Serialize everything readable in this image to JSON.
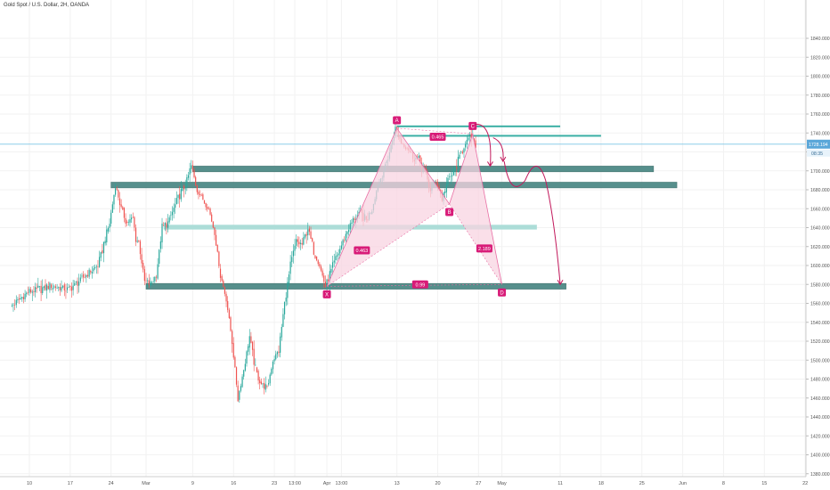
{
  "header": {
    "title": "Gold Spot / U.S. Dollar, 2H, OANDA"
  },
  "colors": {
    "up": "#26a69a",
    "down": "#ef5350",
    "zone": "#4e8a86",
    "zone_light": "#a8dbd6",
    "pattern_line": "#e86fa4",
    "pattern_fill": "#f8d4e2",
    "label_bg": "#d81b78",
    "arrow": "#c2185b",
    "price_line": "#7cc6e6",
    "price_label_bg": "#5aa7d9"
  },
  "chart_data": {
    "type": "candlestick",
    "title": "Gold Spot / U.S. Dollar, 2H, OANDA",
    "y_axis": {
      "min": 1376,
      "max": 1844,
      "ticks": [
        1380,
        1400,
        1420,
        1440,
        1460,
        1480,
        1500,
        1520,
        1540,
        1560,
        1580,
        1600,
        1620,
        1640,
        1660,
        1680,
        1700,
        1720,
        1740,
        1760,
        1780,
        1800,
        1820,
        1840
      ],
      "tick_labels": [
        "1380.000",
        "1400.000",
        "1420.000",
        "1440.000",
        "1460.000",
        "1480.000",
        "1500.000",
        "1520.000",
        "1540.000",
        "1560.000",
        "1580.000",
        "1600.000",
        "1620.000",
        "1640.000",
        "1660.000",
        "1680.000",
        "1700.000",
        "1720.000",
        "1740.000",
        "1760.000",
        "1780.000",
        "1800.000",
        "1820.000",
        "1840.000"
      ]
    },
    "x_axis": {
      "ticks": [
        {
          "label": "10",
          "day": -20
        },
        {
          "label": "17",
          "day": -13
        },
        {
          "label": "24",
          "day": -6
        },
        {
          "label": "Mar",
          "day": 0
        },
        {
          "label": "9",
          "day": 8
        },
        {
          "label": "16",
          "day": 15
        },
        {
          "label": "23",
          "day": 22
        },
        {
          "label": "13:00",
          "day": 25.5
        },
        {
          "label": "Apr",
          "day": 31
        },
        {
          "label": "13:00",
          "day": 33.5
        },
        {
          "label": "13",
          "day": 43
        },
        {
          "label": "20",
          "day": 50
        },
        {
          "label": "27",
          "day": 57
        },
        {
          "label": "May",
          "day": 61
        },
        {
          "label": "11",
          "day": 71
        },
        {
          "label": "18",
          "day": 78
        },
        {
          "label": "25",
          "day": 85
        },
        {
          "label": "Jun",
          "day": 92
        },
        {
          "label": "8",
          "day": 99
        },
        {
          "label": "15",
          "day": 106
        },
        {
          "label": "22",
          "day": 113
        }
      ]
    },
    "price_path": [
      [
        -23,
        1556
      ],
      [
        -20,
        1572
      ],
      [
        -16,
        1578
      ],
      [
        -13,
        1575
      ],
      [
        -10,
        1590
      ],
      [
        -8,
        1600
      ],
      [
        -6,
        1645
      ],
      [
        -5,
        1685
      ],
      [
        -4,
        1660
      ],
      [
        -3,
        1645
      ],
      [
        -2,
        1650
      ],
      [
        -1.5,
        1628
      ],
      [
        -1,
        1625
      ],
      [
        0,
        1583
      ],
      [
        1,
        1580
      ],
      [
        2,
        1590
      ],
      [
        3,
        1640
      ],
      [
        4,
        1645
      ],
      [
        5,
        1660
      ],
      [
        6,
        1675
      ],
      [
        7,
        1685
      ],
      [
        8,
        1705
      ],
      [
        9,
        1680
      ],
      [
        10,
        1670
      ],
      [
        11,
        1660
      ],
      [
        12,
        1635
      ],
      [
        13,
        1590
      ],
      [
        14,
        1565
      ],
      [
        15,
        1520
      ],
      [
        16,
        1460
      ],
      [
        17,
        1490
      ],
      [
        18,
        1525
      ],
      [
        19,
        1490
      ],
      [
        20,
        1475
      ],
      [
        21,
        1470
      ],
      [
        22,
        1500
      ],
      [
        23,
        1510
      ],
      [
        24,
        1560
      ],
      [
        25,
        1600
      ],
      [
        26,
        1625
      ],
      [
        27,
        1622
      ],
      [
        28,
        1640
      ],
      [
        29,
        1615
      ],
      [
        30,
        1600
      ],
      [
        31,
        1578
      ],
      [
        32,
        1595
      ],
      [
        33,
        1610
      ],
      [
        34,
        1625
      ],
      [
        35,
        1640
      ],
      [
        36,
        1650
      ],
      [
        37,
        1655
      ],
      [
        38,
        1648
      ],
      [
        39,
        1660
      ],
      [
        40,
        1685
      ],
      [
        41,
        1700
      ],
      [
        42,
        1720
      ],
      [
        43,
        1745
      ],
      [
        44,
        1730
      ],
      [
        45,
        1725
      ],
      [
        46,
        1715
      ],
      [
        47,
        1712
      ],
      [
        48,
        1700
      ],
      [
        49,
        1680
      ],
      [
        50,
        1690
      ],
      [
        51,
        1670
      ],
      [
        52,
        1690
      ],
      [
        53,
        1698
      ],
      [
        54,
        1715
      ],
      [
        55,
        1730
      ],
      [
        56,
        1736
      ],
      [
        56.5,
        1728
      ]
    ],
    "annotations": {
      "current_price": {
        "value": 1728.194,
        "label": "1728.194",
        "timer": "08:35"
      },
      "zones": [
        {
          "name": "upper-line-1",
          "y": 1747,
          "day_start": 43,
          "day_end": 71
        },
        {
          "name": "upper-line-2",
          "y": 1737,
          "day_start": 43,
          "day_end": 78
        },
        {
          "name": "zone-1",
          "y_low": 1699,
          "y_high": 1705,
          "day_start": 8,
          "day_end": 87
        },
        {
          "name": "zone-2",
          "y_low": 1682,
          "y_high": 1688,
          "day_start": -6,
          "day_end": 91
        },
        {
          "name": "zone-light",
          "y_low": 1638,
          "y_high": 1643,
          "day_start": 3,
          "day_end": 67
        },
        {
          "name": "zone-3",
          "y_low": 1575,
          "y_high": 1581,
          "day_start": 0,
          "day_end": 72
        }
      ],
      "pattern_points": [
        {
          "label": "X",
          "day": 31,
          "value": 1578
        },
        {
          "label": "A",
          "day": 43,
          "value": 1745
        },
        {
          "label": "B",
          "day": 52,
          "value": 1665
        },
        {
          "label": "C",
          "day": 56,
          "value": 1739
        },
        {
          "label": "D",
          "day": 61,
          "value": 1580
        }
      ],
      "ratios": [
        {
          "label": "0.465",
          "day": 50,
          "value": 1736
        },
        {
          "label": "0.463",
          "day": 37,
          "value": 1616
        },
        {
          "label": "2.189",
          "day": 58,
          "value": 1618
        },
        {
          "label": "0.99",
          "day": 47,
          "value": 1580
        }
      ]
    }
  }
}
